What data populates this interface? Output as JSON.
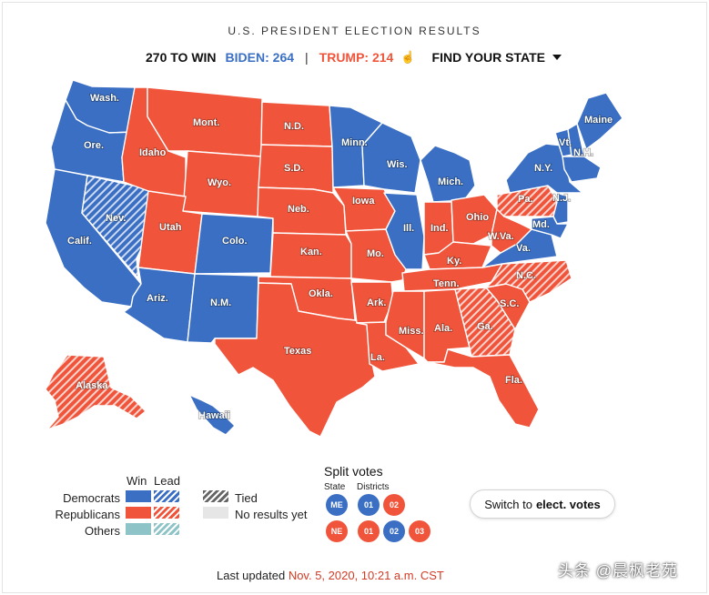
{
  "header": {
    "title": "U.S. PRESIDENT ELECTION RESULTS",
    "to_win": "270 TO WIN",
    "biden": "BIDEN: 264",
    "separator": "|",
    "trump": "TRUMP: 214",
    "find_state": "FIND YOUR STATE"
  },
  "colors": {
    "democrat": "#3a6fc4",
    "republican": "#f0553b",
    "others": "#8ec3c7",
    "no_results": "#e6e6e6"
  },
  "states": {
    "wa": "Wash.",
    "or": "Ore.",
    "ca": "Calif.",
    "nv": "Nev.",
    "id": "Idaho",
    "mt": "Mont.",
    "wy": "Wyo.",
    "ut": "Utah",
    "co": "Colo.",
    "az": "Ariz.",
    "nm": "N.M.",
    "nd": "N.D.",
    "sd": "S.D.",
    "ne": "Neb.",
    "ks": "Kan.",
    "ok": "Okla.",
    "tx": "Texas",
    "mn": "Minn.",
    "ia": "Iowa",
    "mo": "Mo.",
    "ar": "Ark.",
    "la": "La.",
    "wi": "Wis.",
    "il": "Ill.",
    "mi": "Mich.",
    "in": "Ind.",
    "oh": "Ohio",
    "ky": "Ky.",
    "tn": "Tenn.",
    "ms": "Miss.",
    "al": "Ala.",
    "ga": "Ga.",
    "fl": "Fla.",
    "sc": "S.C.",
    "nc": "N.C.",
    "va": "Va.",
    "wv": "W.Va.",
    "pa": "Pa.",
    "ny": "N.Y.",
    "nj": "N.J.",
    "md": "Md.",
    "vt": "Vt.",
    "nh": "N.H.",
    "me": "Maine",
    "ak": "Alaska",
    "hi": "Hawaii"
  },
  "legend": {
    "win": "Win",
    "lead": "Lead",
    "democrats": "Democrats",
    "republicans": "Republicans",
    "others": "Others",
    "tied": "Tied",
    "no_results": "No results yet"
  },
  "split_votes": {
    "title": "Split votes",
    "state_label": "State",
    "districts_label": "Districts",
    "maine": {
      "state": "ME",
      "districts": [
        "01",
        "02"
      ]
    },
    "nebraska": {
      "state": "NE",
      "districts": [
        "01",
        "02",
        "03"
      ]
    }
  },
  "switch": {
    "prefix": "Switch to",
    "bold": "elect. votes"
  },
  "updated": {
    "prefix": "Last updated",
    "timestamp": "Nov. 5, 2020, 10:21 a.m. CST"
  },
  "watermark": "头条 @晨枫老苑"
}
